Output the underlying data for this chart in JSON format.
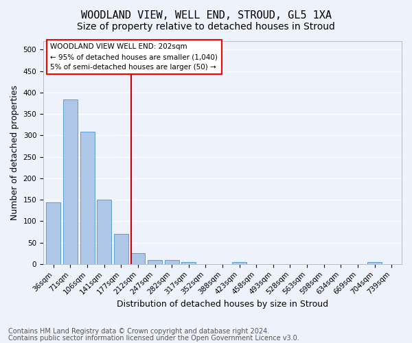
{
  "title": "WOODLAND VIEW, WELL END, STROUD, GL5 1XA",
  "subtitle": "Size of property relative to detached houses in Stroud",
  "xlabel": "Distribution of detached houses by size in Stroud",
  "ylabel": "Number of detached properties",
  "footnote1": "Contains HM Land Registry data © Crown copyright and database right 2024.",
  "footnote2": "Contains public sector information licensed under the Open Government Licence v3.0.",
  "bar_labels": [
    "36sqm",
    "71sqm",
    "106sqm",
    "141sqm",
    "177sqm",
    "212sqm",
    "247sqm",
    "282sqm",
    "317sqm",
    "352sqm",
    "388sqm",
    "423sqm",
    "458sqm",
    "493sqm",
    "528sqm",
    "563sqm",
    "598sqm",
    "634sqm",
    "669sqm",
    "704sqm",
    "739sqm"
  ],
  "bar_values": [
    144,
    384,
    308,
    150,
    70,
    25,
    10,
    10,
    4,
    0,
    0,
    5,
    0,
    0,
    0,
    0,
    0,
    0,
    0,
    4,
    0
  ],
  "bar_color": "#aec6e8",
  "bar_edge_color": "#5a9fd4",
  "vline_x": 4.6,
  "vline_color": "#cc0000",
  "ylim": [
    0,
    520
  ],
  "yticks": [
    0,
    50,
    100,
    150,
    200,
    250,
    300,
    350,
    400,
    450,
    500
  ],
  "legend_title": "WOODLAND VIEW WELL END: 202sqm",
  "legend_line1": "← 95% of detached houses are smaller (1,040)",
  "legend_line2": "5% of semi-detached houses are larger (50) →",
  "background_color": "#eef2fa",
  "grid_color": "#ffffff",
  "title_fontsize": 11,
  "subtitle_fontsize": 10,
  "axis_label_fontsize": 9,
  "tick_fontsize": 7.5,
  "footnote_fontsize": 7
}
